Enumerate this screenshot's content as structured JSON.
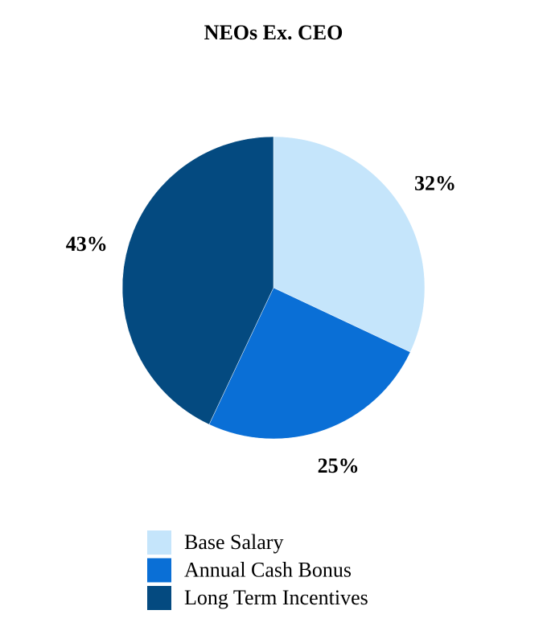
{
  "chart_data": {
    "type": "pie",
    "title": "NEOs Ex. CEO",
    "categories": [
      "Base Salary",
      "Annual Cash Bonus",
      "Long Term Incentives"
    ],
    "values": [
      32,
      25,
      43
    ],
    "value_labels": [
      "32%",
      "25%",
      "43%"
    ],
    "colors": [
      "#c5e5fb",
      "#0a6fd6",
      "#044a80"
    ],
    "legend": "bottom"
  }
}
